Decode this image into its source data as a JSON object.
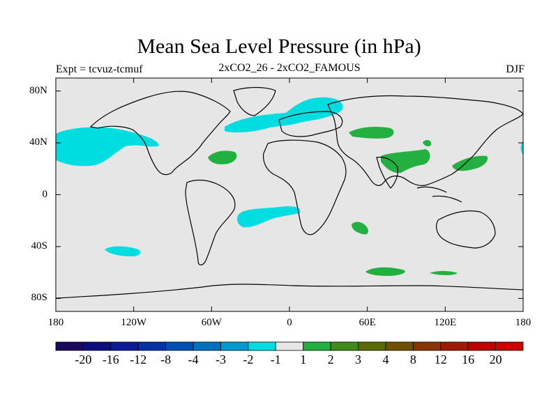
{
  "header": {
    "title": "Mean Sea Level Pressure (in hPa)",
    "left": "Expt = tcvuz-tcmuf",
    "center": "2xCO2_26 - 2xCO2_FAMOUS",
    "right": "DJF"
  },
  "axes": {
    "lat_labels": [
      "80N",
      "40N",
      "0",
      "40S",
      "80S"
    ],
    "lat_values": [
      80,
      40,
      0,
      -40,
      -80
    ],
    "lon_labels": [
      "180",
      "120W",
      "60W",
      "0",
      "60E",
      "120E",
      "180"
    ],
    "lon_values": [
      -180,
      -120,
      -60,
      0,
      60,
      120,
      180
    ],
    "lat_range": [
      -90,
      90
    ],
    "lon_range": [
      -180,
      180
    ]
  },
  "colorbar": {
    "labels": [
      "-20",
      "-16",
      "-12",
      "-8",
      "-4",
      "-3",
      "-2",
      "-1",
      "1",
      "2",
      "3",
      "4",
      "8",
      "12",
      "16",
      "20"
    ],
    "colors": [
      "#1a0a5e",
      "#0d0d80",
      "#0a1a99",
      "#0033a6",
      "#0050b3",
      "#0070c0",
      "#009ad0",
      "#00dde0",
      "#e6e6e6",
      "#22b040",
      "#3f8a1a",
      "#5a6a00",
      "#6e5000",
      "#883400",
      "#a01a00",
      "#bb0000",
      "#cc0000"
    ]
  },
  "colors": {
    "ocean_land_background": "#e6e6e6",
    "negative_minus1_to_minus2": "#00dde0",
    "positive_1_to_2": "#22b040"
  }
}
